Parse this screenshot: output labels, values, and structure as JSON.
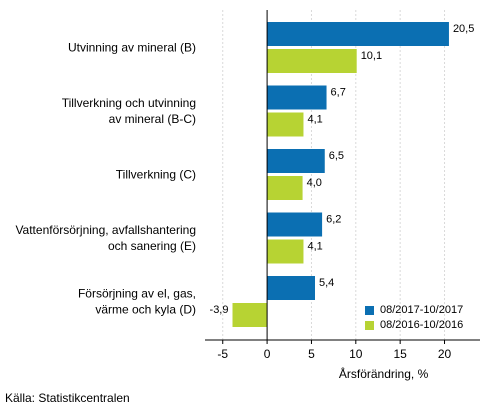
{
  "chart_data": {
    "type": "bar",
    "orientation": "horizontal",
    "categories": [
      "Utvinning av mineral (B)",
      "Tillverkning och utvinning av mineral (B-C)",
      "Tillverkning (C)",
      "Vattenförsörjning, avfallshantering och sanering (E)",
      "Försörjning av el, gas, värme och kyla (D)"
    ],
    "category_lines": [
      [
        "Utvinning av mineral (B)"
      ],
      [
        "Tillverkning och utvinning",
        "av mineral (B-C)"
      ],
      [
        "Tillverkning (C)"
      ],
      [
        "Vattenförsörjning, avfallshantering",
        "och sanering (E)"
      ],
      [
        "Försörjning av el, gas,",
        "värme och kyla (D)"
      ]
    ],
    "series": [
      {
        "name": "08/2017-10/2017",
        "color": "#0b6fb2",
        "values": [
          20.5,
          6.7,
          6.5,
          6.2,
          5.4
        ],
        "labels": [
          "20,5",
          "6,7",
          "6,5",
          "6,2",
          "5,4"
        ]
      },
      {
        "name": "08/2016-10/2016",
        "color": "#b7d333",
        "values": [
          10.1,
          4.1,
          4.0,
          4.1,
          -3.9
        ],
        "labels": [
          "10,1",
          "4,1",
          "4,0",
          "4,1",
          "-3,9"
        ]
      }
    ],
    "xlim": [
      -7,
      24
    ],
    "xticks": [
      -5,
      0,
      5,
      10,
      15,
      20
    ],
    "xtick_labels": [
      "-5",
      "0",
      "5",
      "10",
      "15",
      "20"
    ],
    "xlabel": "Årsförändring, %",
    "grid": "vertical",
    "legend_position": "bottom-right"
  },
  "source": "Källa: Statistikcentralen"
}
